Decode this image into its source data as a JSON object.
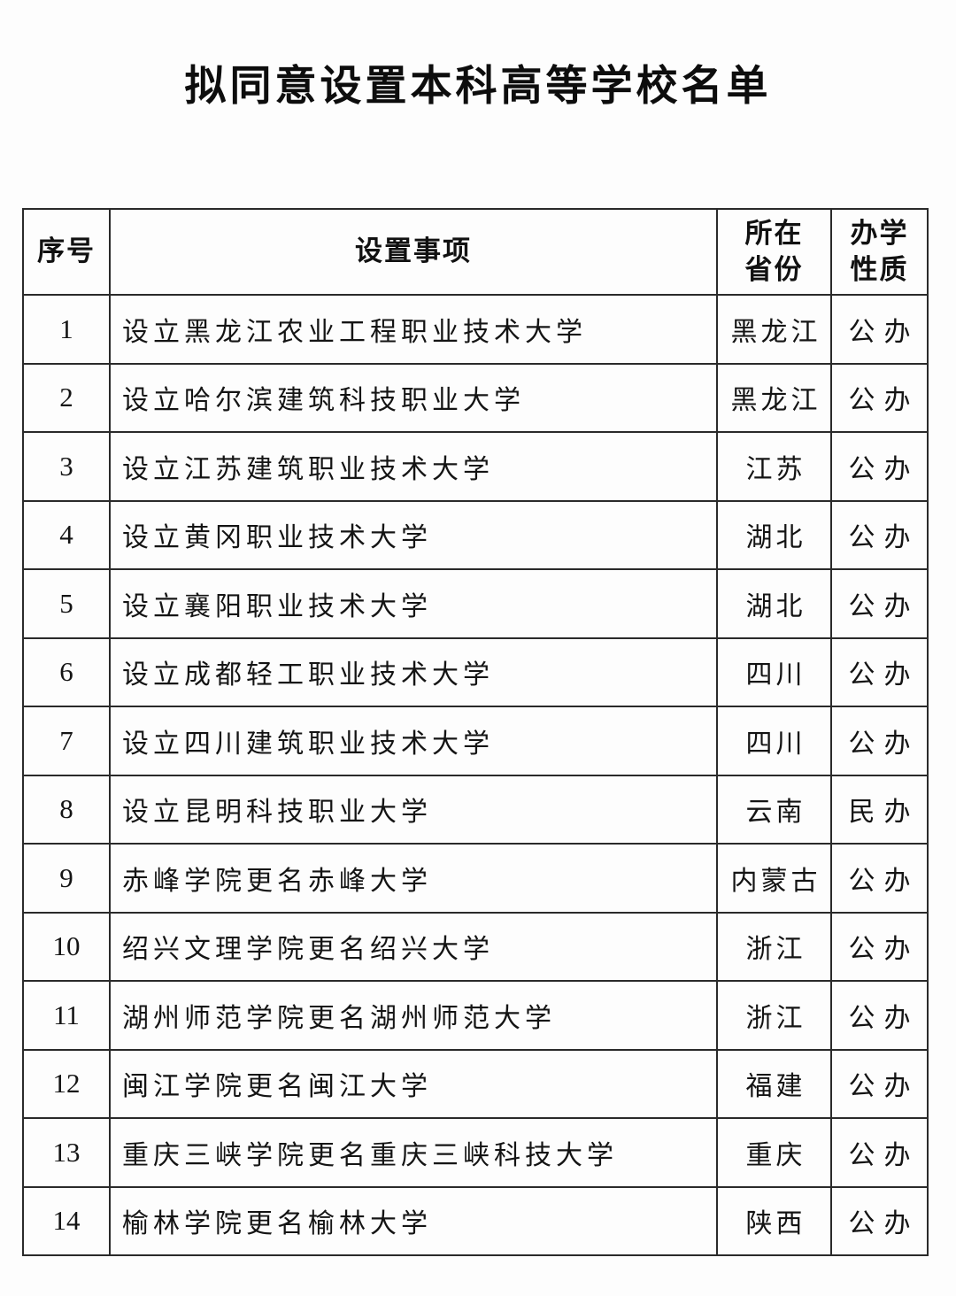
{
  "page": {
    "title": "拟同意设置本科高等学校名单"
  },
  "table": {
    "headers": {
      "index": "序号",
      "item": "设置事项",
      "province_line1": "所在",
      "province_line2": "省份",
      "nature_line1": "办学",
      "nature_line2": "性质"
    },
    "rows": [
      {
        "index": "1",
        "item": "设立黑龙江农业工程职业技术大学",
        "province": "黑龙江",
        "nature": "公办"
      },
      {
        "index": "2",
        "item": "设立哈尔滨建筑科技职业大学",
        "province": "黑龙江",
        "nature": "公办"
      },
      {
        "index": "3",
        "item": "设立江苏建筑职业技术大学",
        "province": "江苏",
        "nature": "公办"
      },
      {
        "index": "4",
        "item": "设立黄冈职业技术大学",
        "province": "湖北",
        "nature": "公办"
      },
      {
        "index": "5",
        "item": "设立襄阳职业技术大学",
        "province": "湖北",
        "nature": "公办"
      },
      {
        "index": "6",
        "item": "设立成都轻工职业技术大学",
        "province": "四川",
        "nature": "公办"
      },
      {
        "index": "7",
        "item": "设立四川建筑职业技术大学",
        "province": "四川",
        "nature": "公办"
      },
      {
        "index": "8",
        "item": "设立昆明科技职业大学",
        "province": "云南",
        "nature": "民办"
      },
      {
        "index": "9",
        "item": "赤峰学院更名赤峰大学",
        "province": "内蒙古",
        "nature": "公办"
      },
      {
        "index": "10",
        "item": "绍兴文理学院更名绍兴大学",
        "province": "浙江",
        "nature": "公办"
      },
      {
        "index": "11",
        "item": "湖州师范学院更名湖州师范大学",
        "province": "浙江",
        "nature": "公办"
      },
      {
        "index": "12",
        "item": "闽江学院更名闽江大学",
        "province": "福建",
        "nature": "公办"
      },
      {
        "index": "13",
        "item": "重庆三峡学院更名重庆三峡科技大学",
        "province": "重庆",
        "nature": "公办"
      },
      {
        "index": "14",
        "item": "榆林学院更名榆林大学",
        "province": "陕西",
        "nature": "公办"
      }
    ]
  }
}
